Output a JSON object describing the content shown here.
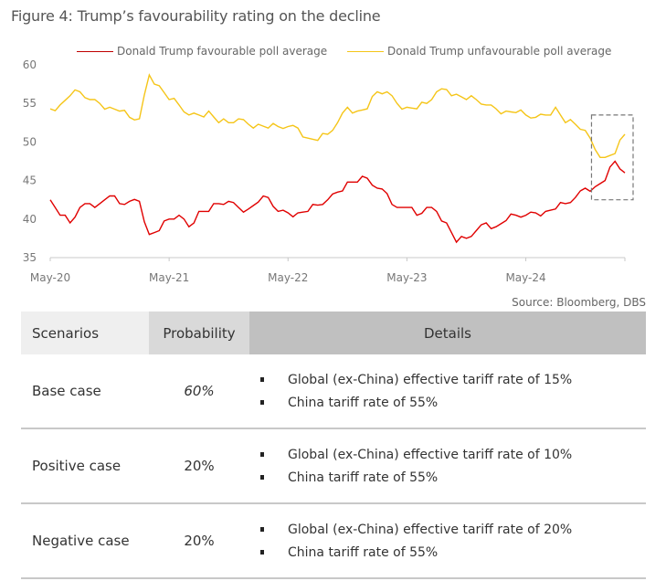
{
  "figure": {
    "title": "Figure 4: Trump’s favourability rating on the decline",
    "source": "Source: Bloomberg, DBS"
  },
  "chart_data": {
    "type": "line",
    "title": "Figure 4: Trump’s favourability rating on the decline",
    "xlabel": "",
    "ylabel": "",
    "ylim": [
      35,
      60
    ],
    "yticks": [
      35,
      40,
      45,
      50,
      55,
      60
    ],
    "xticks": [
      "May-20",
      "May-21",
      "May-22",
      "May-23",
      "May-24"
    ],
    "x_range": [
      "May-20",
      "Mar-25"
    ],
    "grid": false,
    "legend_position": "top",
    "x": [
      "May-20",
      "Jun-20",
      "Jul-20",
      "Aug-20",
      "Sep-20",
      "Oct-20",
      "Nov-20",
      "Dec-20",
      "Jan-21",
      "Feb-21",
      "Mar-21",
      "Apr-21",
      "May-21",
      "Jun-21",
      "Jul-21",
      "Aug-21",
      "Sep-21",
      "Oct-21",
      "Nov-21",
      "Dec-21",
      "Jan-22",
      "Feb-22",
      "Mar-22",
      "Apr-22",
      "May-22",
      "Jun-22",
      "Jul-22",
      "Aug-22",
      "Sep-22",
      "Oct-22",
      "Nov-22",
      "Dec-22",
      "Jan-23",
      "Feb-23",
      "Mar-23",
      "Apr-23",
      "May-23",
      "Jun-23",
      "Jul-23",
      "Aug-23",
      "Sep-23",
      "Oct-23",
      "Nov-23",
      "Dec-23",
      "Jan-24",
      "Feb-24",
      "Mar-24",
      "Apr-24",
      "May-24",
      "Jun-24",
      "Jul-24",
      "Aug-24",
      "Sep-24",
      "Oct-24",
      "Nov-24",
      "Dec-24",
      "Jan-25",
      "Feb-25",
      "Mar-25"
    ],
    "series": [
      {
        "name": "Donald Trump favourable poll average",
        "color": "#e00000",
        "values": [
          42.5,
          40.5,
          39.5,
          41.5,
          42,
          42,
          43,
          42,
          42.3,
          42.3,
          38,
          38.5,
          40,
          40.5,
          39,
          41,
          41,
          42,
          42.3,
          41.5,
          41.3,
          42.2,
          42.8,
          41,
          40.8,
          40.8,
          41,
          41.8,
          42.5,
          43.5,
          44.8,
          44.8,
          45.3,
          44,
          43.3,
          41.5,
          41.5,
          40.5,
          41.5,
          41,
          39.5,
          37,
          37.5,
          38.5,
          39.5,
          39,
          39.8,
          40.5,
          40.5,
          40.8,
          41,
          41.3,
          42,
          42.8,
          44,
          44.2,
          45,
          47.5,
          46
        ]
      },
      {
        "name": "Donald Trump unfavourable poll average",
        "color": "#f5c518",
        "values": [
          54.3,
          54.8,
          56,
          56.5,
          55.5,
          55,
          54.5,
          54,
          53.2,
          53,
          58.7,
          57.3,
          55.5,
          54.8,
          53.5,
          53.5,
          54,
          52.5,
          52.5,
          53,
          52.3,
          52.3,
          51.8,
          52,
          52,
          51.8,
          50.5,
          50.2,
          51,
          52.5,
          54.5,
          54,
          54.3,
          56.5,
          56.5,
          55,
          54.5,
          54.3,
          55,
          56.5,
          56.8,
          56.2,
          55.5,
          55.5,
          54.8,
          54.3,
          54,
          53.8,
          53.5,
          53.2,
          53.5,
          54.5,
          52.5,
          52.3,
          51.5,
          49,
          48,
          48.5,
          51
        ]
      }
    ],
    "annotation": "dashed rectangle highlighting Dec-24 to Mar-25 crossover"
  },
  "table": {
    "headers": [
      "Scenarios",
      "Probability",
      "Details"
    ],
    "rows": [
      {
        "scenario": "Base case",
        "probability": "60%",
        "details": [
          "Global (ex-China) effective tariff rate of 15%",
          "China tariff rate of 55%"
        ]
      },
      {
        "scenario": "Positive case",
        "probability": "20%",
        "details": [
          "Global (ex-China) effective tariff rate of 10%",
          "China tariff rate of 55%"
        ]
      },
      {
        "scenario": "Negative case",
        "probability": "20%",
        "details": [
          "Global (ex-China) effective tariff rate of 20%",
          "China tariff rate of 55%"
        ]
      }
    ]
  }
}
